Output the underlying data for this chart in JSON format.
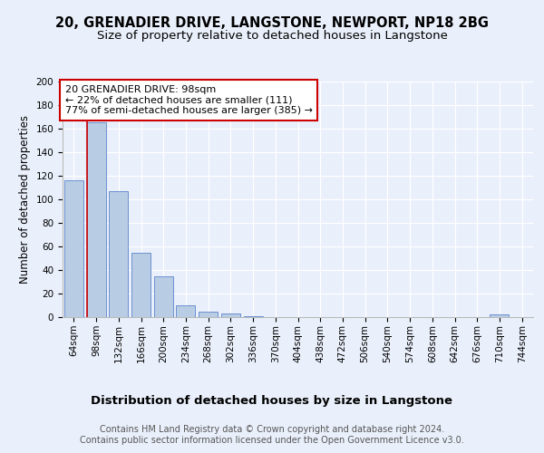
{
  "title": "20, GRENADIER DRIVE, LANGSTONE, NEWPORT, NP18 2BG",
  "subtitle": "Size of property relative to detached houses in Langstone",
  "xlabel": "Distribution of detached houses by size in Langstone",
  "ylabel": "Number of detached properties",
  "categories": [
    "64sqm",
    "98sqm",
    "132sqm",
    "166sqm",
    "200sqm",
    "234sqm",
    "268sqm",
    "302sqm",
    "336sqm",
    "370sqm",
    "404sqm",
    "438sqm",
    "472sqm",
    "506sqm",
    "540sqm",
    "574sqm",
    "608sqm",
    "642sqm",
    "676sqm",
    "710sqm",
    "744sqm"
  ],
  "values": [
    116,
    165,
    107,
    55,
    35,
    10,
    5,
    3,
    1,
    0,
    0,
    0,
    0,
    0,
    0,
    0,
    0,
    0,
    0,
    2,
    0
  ],
  "bar_color": "#b8cce4",
  "bar_edge_color": "#4472c4",
  "red_line_index": 1,
  "red_line_color": "#cc0000",
  "annotation_text": "20 GRENADIER DRIVE: 98sqm\n← 22% of detached houses are smaller (111)\n77% of semi-detached houses are larger (385) →",
  "annotation_box_color": "#ffffff",
  "annotation_box_edge_color": "#cc0000",
  "ylim": [
    0,
    200
  ],
  "yticks": [
    0,
    20,
    40,
    60,
    80,
    100,
    120,
    140,
    160,
    180,
    200
  ],
  "background_color": "#eaf0fb",
  "plot_bg_color": "#eaf0fb",
  "grid_color": "#ffffff",
  "footer_text": "Contains HM Land Registry data © Crown copyright and database right 2024.\nContains public sector information licensed under the Open Government Licence v3.0.",
  "title_fontsize": 10.5,
  "subtitle_fontsize": 9.5,
  "xlabel_fontsize": 9.5,
  "ylabel_fontsize": 8.5,
  "tick_fontsize": 7.5,
  "annotation_fontsize": 8,
  "footer_fontsize": 7
}
